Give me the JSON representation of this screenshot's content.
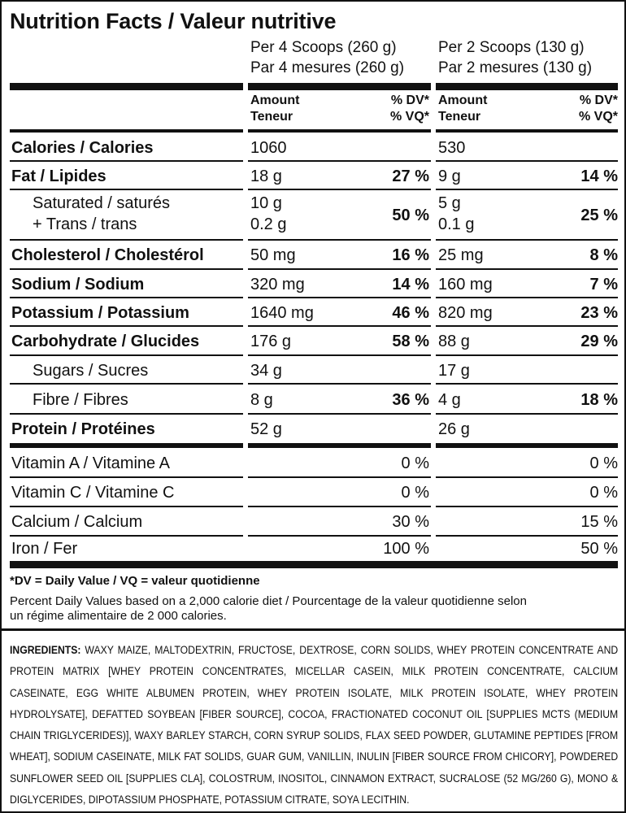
{
  "title": "Nutrition Facts / Valeur nutritive",
  "serving": {
    "col1_line1": "Per 4 Scoops (260 g)",
    "col1_line2": "Par 4 mesures (260 g)",
    "col2_line1": "Per 2 Scoops (130 g)",
    "col2_line2": "Par 2 mesures (130 g)"
  },
  "headers": {
    "amount": "Amount",
    "teneur": "Teneur",
    "dv": "% DV*",
    "vq": "% VQ*"
  },
  "rows": [
    {
      "label": "Calories / Calories",
      "a1": "1060",
      "d1": "",
      "a2": "530",
      "d2": ""
    },
    {
      "label": "Fat / Lipides",
      "a1": "18 g",
      "d1": "27 %",
      "a2": "9 g",
      "d2": "14 %"
    },
    {
      "label": "Saturated / saturés",
      "label2": "+ Trans / trans",
      "a1": "10 g",
      "a1b": "0.2 g",
      "d1": "50 %",
      "a2": "5 g",
      "a2b": "0.1 g",
      "d2": "25 %"
    },
    {
      "label": "Cholesterol / Cholestérol",
      "a1": "50 mg",
      "d1": "16 %",
      "a2": "25 mg",
      "d2": "8 %"
    },
    {
      "label": "Sodium / Sodium",
      "a1": "320 mg",
      "d1": "14 %",
      "a2": "160 mg",
      "d2": "7 %"
    },
    {
      "label": "Potassium / Potassium",
      "a1": "1640 mg",
      "d1": "46 %",
      "a2": "820 mg",
      "d2": "23 %"
    },
    {
      "label": "Carbohydrate / Glucides",
      "a1": "176 g",
      "d1": "58 %",
      "a2": "88 g",
      "d2": "29 %"
    },
    {
      "label": "Sugars / Sucres",
      "a1": "34 g",
      "d1": "",
      "a2": "17 g",
      "d2": ""
    },
    {
      "label": "Fibre / Fibres",
      "a1": "8 g",
      "d1": "36 %",
      "a2": "4 g",
      "d2": "18 %"
    },
    {
      "label": "Protein / Protéines",
      "a1": "52 g",
      "d1": "",
      "a2": "26 g",
      "d2": ""
    },
    {
      "label": "Vitamin A / Vitamine A",
      "d1": "0 %",
      "d2": "0 %"
    },
    {
      "label": "Vitamin C / Vitamine C",
      "d1": "0 %",
      "d2": "0 %"
    },
    {
      "label": "Calcium / Calcium",
      "d1": "30 %",
      "d2": "15 %"
    },
    {
      "label": "Iron / Fer",
      "d1": "100 %",
      "d2": "50 %"
    }
  ],
  "footnote1": "*DV = Daily Value / VQ = valeur quotidienne",
  "footnote2a": "Percent Daily Values based on a 2,000 calorie diet / Pourcentage de la valeur quotidienne selon",
  "footnote2b": "un régime alimentaire de 2 000 calories.",
  "ingredients_label": "INGREDIENTS:",
  "ingredients_text": "WAXY MAIZE, MALTODEXTRIN, FRUCTOSE, DEXTROSE, CORN SOLIDS, WHEY PROTEIN CONCENTRATE AND PROTEIN MATRIX [WHEY PROTEIN CONCENTRATES, MICELLAR CASEIN, MILK PROTEIN CONCENTRATE, CALCIUM CASEINATE, EGG WHITE ALBUMEN PROTEIN, WHEY PROTEIN ISOLATE, MILK PROTEIN ISOLATE, WHEY PROTEIN HYDROLYSATE], DEFATTED SOYBEAN [FIBER SOURCE], COCOA, FRACTIONATED COCONUT OIL [SUPPLIES MCTS (MEDIUM CHAIN TRIGLYCERIDES)], WAXY BARLEY STARCH, CORN SYRUP SOLIDS, FLAX SEED POWDER, GLUTAMINE PEPTIDES [FROM WHEAT], SODIUM CASEINATE, MILK FAT SOLIDS, GUAR GUM, VANILLIN, INULIN [FIBER SOURCE FROM CHICORY], POWDERED SUNFLOWER SEED OIL [SUPPLIES CLA], COLOSTRUM, INOSITOL, CINNAMON EXTRACT, SUCRALOSE (52 MG/260 G), MONO & DIGLYCERIDES, DIPOTASSIUM PHOSPHATE, POTASSIUM CITRATE, SOYA LECITHIN."
}
